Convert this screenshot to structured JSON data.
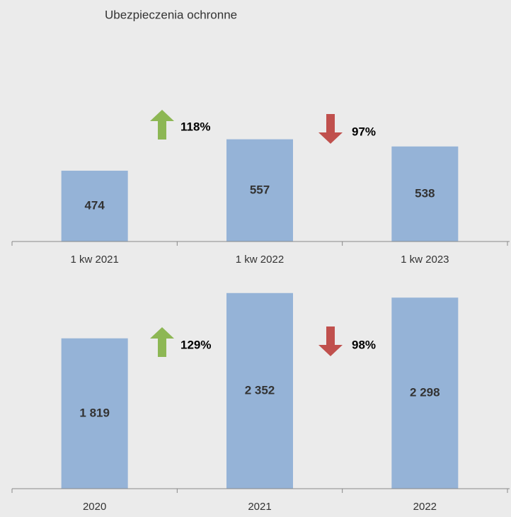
{
  "chart_data": [
    {
      "type": "bar",
      "title": "Ubezpieczenia ochronne",
      "categories": [
        "1 kw 2021",
        "1 kw 2022",
        "1 kw 2023"
      ],
      "values": [
        474,
        557,
        538
      ],
      "color": "#95b3d7",
      "ylim": [
        287,
        850
      ],
      "annotations": [
        {
          "text": "118%",
          "color": "#8db754"
        },
        {
          "text": "97%",
          "color": "#c0504d"
        }
      ]
    },
    {
      "type": "bar",
      "categories": [
        "2020",
        "2021",
        "2022"
      ],
      "values": [
        1819,
        2352,
        2298
      ],
      "value_labels": [
        "1 819",
        "2 352",
        "2 298"
      ],
      "color": "#95b3d7",
      "ylim": [
        50,
        2550
      ],
      "annotations": [
        {
          "text": "129%",
          "color": "#8db754"
        },
        {
          "text": "98%",
          "color": "#c0504d"
        }
      ]
    }
  ]
}
